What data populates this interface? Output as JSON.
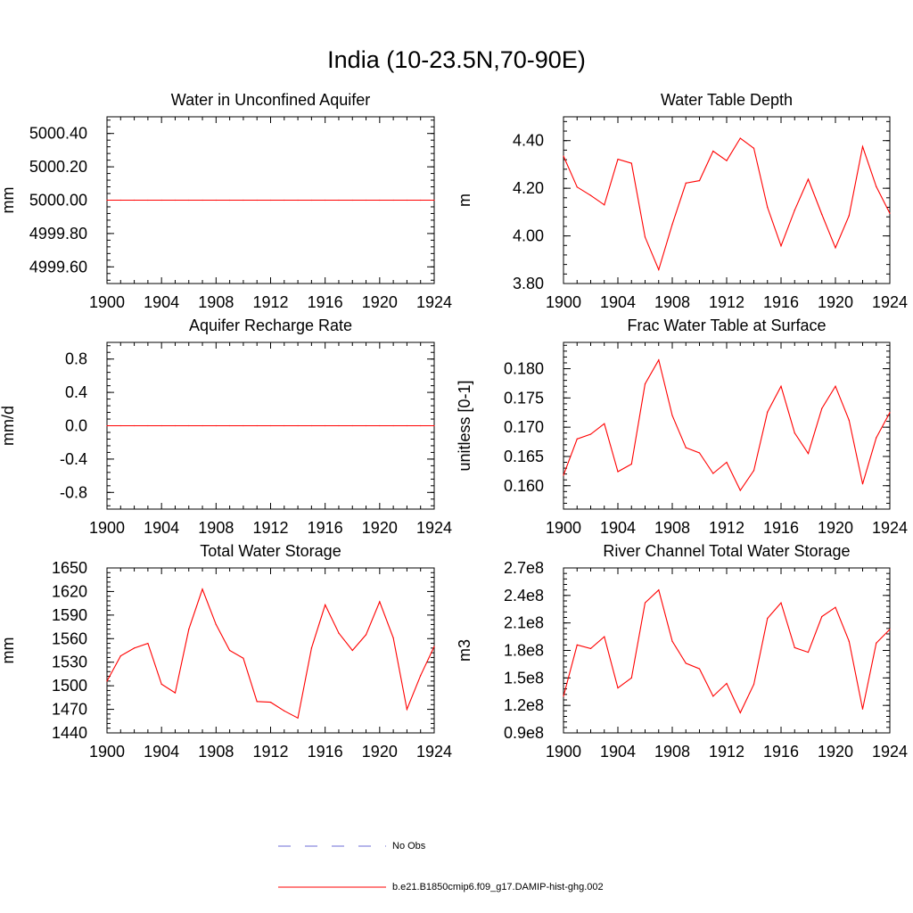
{
  "title": "India (10-23.5N,70-90E)",
  "colors": {
    "series": "#ff0000",
    "obs": "#6b6bd6",
    "axis": "#000000"
  },
  "legend": {
    "obs_label": "No Obs",
    "model_label": "b.e21.B1850cmip6.f09_g17.DAMIP-hist-ghg.002"
  },
  "chart_data": [
    {
      "type": "line",
      "title": "Water in Unconfined Aquifer",
      "ylabel": "mm",
      "xlim": [
        1900,
        1924
      ],
      "ylim": [
        4999.5,
        5000.5
      ],
      "xticks": [
        "1900",
        "1904",
        "1908",
        "1912",
        "1916",
        "1920",
        "1924"
      ],
      "yticks": [
        "4999.60",
        "4999.80",
        "5000.00",
        "5000.20",
        "5000.40"
      ],
      "x": [
        1900,
        1901,
        1902,
        1903,
        1904,
        1905,
        1906,
        1907,
        1908,
        1909,
        1910,
        1911,
        1912,
        1913,
        1914,
        1915,
        1916,
        1917,
        1918,
        1919,
        1920,
        1921,
        1922,
        1923,
        1924
      ],
      "series": [
        {
          "values": [
            5000,
            5000,
            5000,
            5000,
            5000,
            5000,
            5000,
            5000,
            5000,
            5000,
            5000,
            5000,
            5000,
            5000,
            5000,
            5000,
            5000,
            5000,
            5000,
            5000,
            5000,
            5000,
            5000,
            5000,
            5000
          ]
        }
      ]
    },
    {
      "type": "line",
      "title": "Water Table Depth",
      "ylabel": "m",
      "xlim": [
        1900,
        1924
      ],
      "ylim": [
        3.8,
        4.5
      ],
      "xticks": [
        "1900",
        "1904",
        "1908",
        "1912",
        "1916",
        "1920",
        "1924"
      ],
      "yticks": [
        "3.80",
        "4.00",
        "4.20",
        "4.40"
      ],
      "x": [
        1900,
        1901,
        1902,
        1903,
        1904,
        1905,
        1906,
        1907,
        1908,
        1909,
        1910,
        1911,
        1912,
        1913,
        1914,
        1915,
        1916,
        1917,
        1918,
        1919,
        1920,
        1921,
        1922,
        1923,
        1924
      ],
      "series": [
        {
          "values": [
            4.335,
            4.205,
            4.17,
            4.13,
            4.322,
            4.305,
            3.995,
            3.858,
            4.048,
            4.222,
            4.232,
            4.356,
            4.316,
            4.41,
            4.368,
            4.12,
            3.958,
            4.108,
            4.238,
            4.09,
            3.95,
            4.085,
            4.375,
            4.207,
            4.095
          ]
        }
      ]
    },
    {
      "type": "line",
      "title": "Aquifer Recharge Rate",
      "ylabel": "mm/d",
      "xlim": [
        1900,
        1924
      ],
      "ylim": [
        -1.0,
        1.0
      ],
      "xticks": [
        "1900",
        "1904",
        "1908",
        "1912",
        "1916",
        "1920",
        "1924"
      ],
      "yticks": [
        "-0.8",
        "-0.4",
        "0.0",
        "0.4",
        "0.8"
      ],
      "x": [
        1900,
        1901,
        1902,
        1903,
        1904,
        1905,
        1906,
        1907,
        1908,
        1909,
        1910,
        1911,
        1912,
        1913,
        1914,
        1915,
        1916,
        1917,
        1918,
        1919,
        1920,
        1921,
        1922,
        1923,
        1924
      ],
      "series": [
        {
          "values": [
            0,
            0,
            0,
            0,
            0,
            0,
            0,
            0,
            0,
            0,
            0,
            0,
            0,
            0,
            0,
            0,
            0,
            0,
            0,
            0,
            0,
            0,
            0,
            0,
            0
          ]
        }
      ]
    },
    {
      "type": "line",
      "title": "Frac Water Table at Surface",
      "ylabel": "unitless [0-1]",
      "xlim": [
        1900,
        1924
      ],
      "ylim": [
        0.156,
        0.1845
      ],
      "xticks": [
        "1900",
        "1904",
        "1908",
        "1912",
        "1916",
        "1920",
        "1924"
      ],
      "yticks": [
        "0.160",
        "0.165",
        "0.170",
        "0.175",
        "0.180"
      ],
      "x": [
        1900,
        1901,
        1902,
        1903,
        1904,
        1905,
        1906,
        1907,
        1908,
        1909,
        1910,
        1911,
        1912,
        1913,
        1914,
        1915,
        1916,
        1917,
        1918,
        1919,
        1920,
        1921,
        1922,
        1923,
        1924
      ],
      "series": [
        {
          "values": [
            0.1618,
            0.168,
            0.1688,
            0.1706,
            0.1624,
            0.1637,
            0.1774,
            0.1815,
            0.172,
            0.1665,
            0.1656,
            0.1621,
            0.164,
            0.1592,
            0.1626,
            0.1726,
            0.177,
            0.169,
            0.1655,
            0.1732,
            0.177,
            0.1712,
            0.1603,
            0.1682,
            0.1725
          ]
        }
      ]
    },
    {
      "type": "line",
      "title": "Total Water Storage",
      "ylabel": "mm",
      "xlim": [
        1900,
        1924
      ],
      "ylim": [
        1440,
        1650
      ],
      "xticks": [
        "1900",
        "1904",
        "1908",
        "1912",
        "1916",
        "1920",
        "1924"
      ],
      "yticks": [
        "1440",
        "1470",
        "1500",
        "1530",
        "1560",
        "1590",
        "1620",
        "1650"
      ],
      "x": [
        1900,
        1901,
        1902,
        1903,
        1904,
        1905,
        1906,
        1907,
        1908,
        1909,
        1910,
        1911,
        1912,
        1913,
        1914,
        1915,
        1916,
        1917,
        1918,
        1919,
        1920,
        1921,
        1922,
        1923,
        1924
      ],
      "series": [
        {
          "values": [
            1506,
            1538,
            1548,
            1554,
            1502,
            1491,
            1572,
            1623,
            1578,
            1545,
            1535,
            1480,
            1479,
            1468,
            1459,
            1548,
            1603,
            1567,
            1545,
            1565,
            1607,
            1561,
            1470,
            1513,
            1550
          ]
        }
      ]
    },
    {
      "type": "line",
      "title": "River Channel Total Water Storage",
      "ylabel": "m3",
      "xlim": [
        1900,
        1924
      ],
      "ylim": [
        90000000,
        270000000
      ],
      "xticks": [
        "1900",
        "1904",
        "1908",
        "1912",
        "1916",
        "1920",
        "1924"
      ],
      "yticks": [
        "0.9e8",
        "1.2e8",
        "1.5e8",
        "1.8e8",
        "2.1e8",
        "2.4e8",
        "2.7e8"
      ],
      "x": [
        1900,
        1901,
        1902,
        1903,
        1904,
        1905,
        1906,
        1907,
        1908,
        1909,
        1910,
        1911,
        1912,
        1913,
        1914,
        1915,
        1916,
        1917,
        1918,
        1919,
        1920,
        1921,
        1922,
        1923,
        1924
      ],
      "series": [
        {
          "values": [
            130000000,
            186000000,
            182000000,
            195000000,
            139000000,
            150000000,
            232000000,
            246000000,
            190000000,
            166000000,
            160000000,
            130000000,
            144000000,
            112000000,
            143000000,
            215000000,
            232000000,
            183000000,
            178000000,
            217000000,
            227000000,
            190000000,
            116000000,
            188000000,
            203000000
          ]
        }
      ]
    }
  ]
}
